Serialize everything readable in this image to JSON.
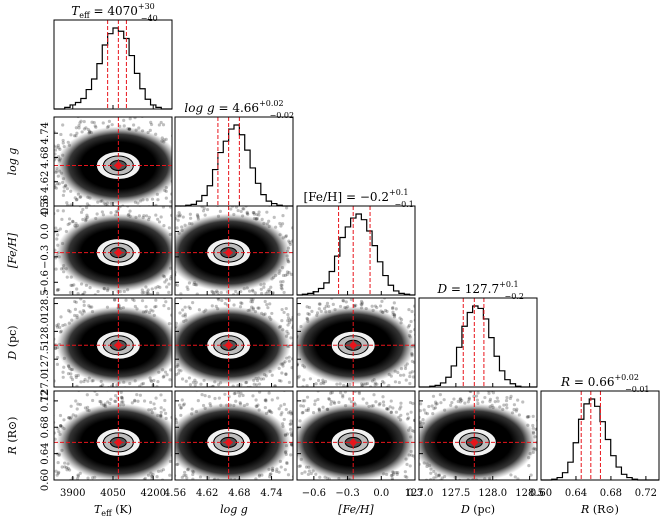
{
  "chart_data": {
    "type": "corner",
    "colors": {
      "truth": "#e8141b",
      "hist": "#000000",
      "points": "#000000",
      "contour_light": "#e6e6e6"
    },
    "parameters": [
      {
        "key": "teff",
        "label": "T_eff (K)",
        "title_name": "T",
        "title_sub": "eff",
        "title_value": "= 4070",
        "title_plus": "+30",
        "title_minus": "−40",
        "axis_main": "T",
        "axis_sub": "eff",
        "axis_unit": " (K)",
        "range": [
          3830,
          4270
        ],
        "ticks": [
          3900,
          4050,
          4200
        ],
        "tick_labels": [
          "3900",
          "4050",
          "4200"
        ],
        "median": 4070,
        "q16": 4030,
        "q84": 4100,
        "hist": [
          0,
          0,
          0.02,
          0.05,
          0.08,
          0.13,
          0.24,
          0.37,
          0.56,
          0.79,
          0.93,
          1.0,
          0.96,
          0.87,
          0.66,
          0.44,
          0.25,
          0.12,
          0.05,
          0.02,
          0,
          0
        ]
      },
      {
        "key": "logg",
        "label": "log g",
        "title_name": "log g",
        "title_sub": "",
        "title_value": "= 4.66",
        "title_plus": "+0.02",
        "title_minus": "−0.02",
        "axis_main": "log g",
        "axis_sub": "",
        "axis_unit": "",
        "range": [
          4.56,
          4.78
        ],
        "ticks": [
          4.56,
          4.62,
          4.68,
          4.74
        ],
        "tick_labels": [
          "4.56",
          "4.62",
          "4.68",
          "4.74"
        ],
        "median": 4.66,
        "q16": 4.64,
        "q84": 4.68,
        "hist": [
          0,
          0,
          0.01,
          0.02,
          0.06,
          0.13,
          0.25,
          0.45,
          0.66,
          0.8,
          0.95,
          1.0,
          0.88,
          0.69,
          0.47,
          0.28,
          0.14,
          0.06,
          0.03,
          0.01,
          0,
          0
        ]
      },
      {
        "key": "feh",
        "label": "[Fe/H]",
        "title_name": "[Fe/H]",
        "title_sub": "",
        "title_value": "= −0.2",
        "title_plus": "+0.1",
        "title_minus": "−0.1",
        "axis_main": "[Fe/H]",
        "axis_sub": "",
        "axis_unit": "",
        "range": [
          -0.75,
          0.3
        ],
        "ticks": [
          -0.6,
          -0.3,
          0.0,
          0.3
        ],
        "tick_labels": [
          "−0.6",
          "−0.3",
          "0.0",
          "0.3"
        ],
        "median": -0.25,
        "q16": -0.38,
        "q84": -0.1,
        "hist": [
          0,
          0.01,
          0.02,
          0.04,
          0.08,
          0.15,
          0.29,
          0.48,
          0.71,
          0.84,
          0.95,
          1.0,
          0.93,
          0.79,
          0.61,
          0.41,
          0.24,
          0.12,
          0.05,
          0.02,
          0.01,
          0
        ]
      },
      {
        "key": "dist",
        "label": "D (pc)",
        "title_name": "D",
        "title_sub": "",
        "title_value": "= 127.7",
        "title_plus": "+0.1",
        "title_minus": "−0.2",
        "axis_main": "D",
        "axis_sub": "",
        "axis_unit": " (pc)",
        "range": [
          127.0,
          128.6
        ],
        "ticks": [
          127.0,
          127.5,
          128.0,
          128.5
        ],
        "tick_labels": [
          "127.0",
          "127.5",
          "128.0",
          "128.5"
        ],
        "median": 127.75,
        "q16": 127.6,
        "q84": 127.88,
        "hist": [
          0,
          0,
          0.01,
          0.02,
          0.05,
          0.12,
          0.26,
          0.49,
          0.75,
          0.92,
          1.0,
          0.97,
          0.84,
          0.61,
          0.38,
          0.2,
          0.09,
          0.04,
          0.01,
          0,
          0,
          0
        ]
      },
      {
        "key": "rad",
        "label": "R (R_sun)",
        "title_name": "R",
        "title_sub": "",
        "title_value": "= 0.66",
        "title_plus": "+0.02",
        "title_minus": "−0.01",
        "axis_main": "R",
        "axis_sub": "",
        "axis_unit": " (R⊙)",
        "range": [
          0.6,
          0.735
        ],
        "ticks": [
          0.6,
          0.64,
          0.68,
          0.72
        ],
        "tick_labels": [
          "0.60",
          "0.64",
          "0.68",
          "0.72"
        ],
        "median": 0.657,
        "q16": 0.646,
        "q84": 0.668,
        "hist": [
          0,
          0,
          0.01,
          0.03,
          0.09,
          0.22,
          0.46,
          0.75,
          0.94,
          1.0,
          0.91,
          0.72,
          0.5,
          0.3,
          0.16,
          0.07,
          0.03,
          0.01,
          0,
          0,
          0,
          0
        ]
      }
    ]
  }
}
